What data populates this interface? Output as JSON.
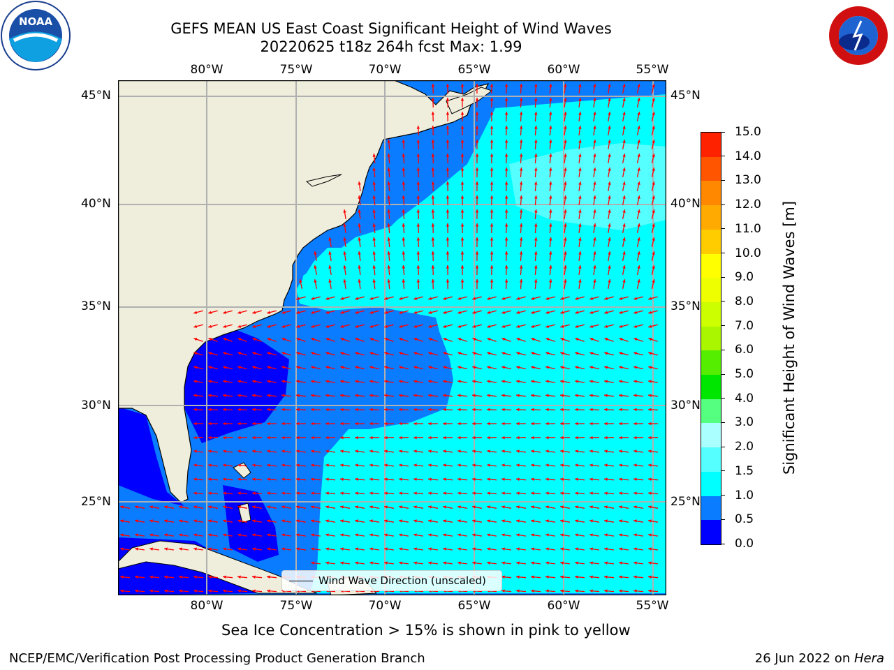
{
  "title": {
    "line1": "GEFS MEAN US East Coast Significant Height of Wind Waves",
    "line2": "20220625 t18z 264h fcst   Max: 1.99"
  },
  "logos": {
    "left": "NOAA",
    "right": "NATIONAL WEATHER SERVICE"
  },
  "map": {
    "lon_labels": [
      "80°W",
      "75°W",
      "70°W",
      "65°W",
      "60°W",
      "55°W"
    ],
    "lat_labels": [
      "45°N",
      "40°N",
      "35°N",
      "30°N",
      "25°N"
    ],
    "legend_label": "Wind Wave Direction (unscaled)",
    "colors": {
      "land": "#efeedc",
      "grid": "#b0b0b0",
      "arrow": "#ff0000"
    }
  },
  "colorbar": {
    "label": "Significant Height of Wind Waves [m]",
    "ticks": [
      "0.0",
      "0.5",
      "1.0",
      "1.5",
      "2.0",
      "3.0",
      "4.0",
      "5.0",
      "6.0",
      "7.0",
      "8.0",
      "9.0",
      "10.0",
      "11.0",
      "12.0",
      "13.0",
      "14.0",
      "15.0"
    ],
    "colors": [
      "#0000ff",
      "#0a7cff",
      "#00ffff",
      "#55ffff",
      "#aaffff",
      "#55ff7f",
      "#00e600",
      "#55ee00",
      "#aaf500",
      "#ccff00",
      "#eeff00",
      "#ffff00",
      "#ffcc00",
      "#ffaa00",
      "#ff8800",
      "#ff5500",
      "#ff2200"
    ]
  },
  "note": "Sea Ice Concentration > 15% is shown in pink to yellow",
  "footer": {
    "left": "NCEP/EMC/Verification Post Processing Product Generation Branch",
    "right_date": "26 Jun 2022 on ",
    "right_machine": "Hera"
  }
}
